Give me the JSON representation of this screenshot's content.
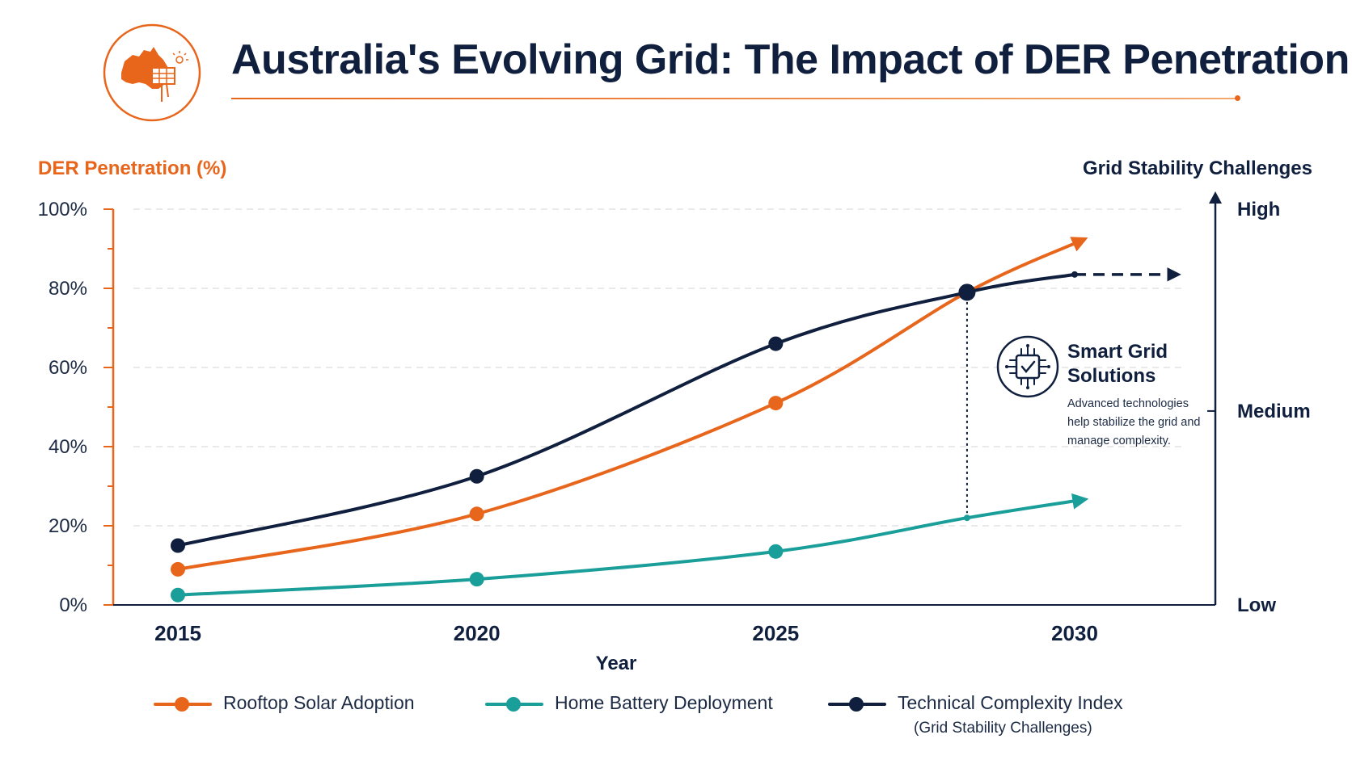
{
  "header": {
    "title": "Australia's Evolving Grid: The Impact of DER Penetration",
    "logo_icon": "australia-solar-panel-icon"
  },
  "colors": {
    "orange": "#e8661c",
    "teal": "#1a9e9a",
    "navy": "#0f1f3d",
    "grid": "#dcdcdc"
  },
  "chart_data": {
    "type": "line",
    "title": "Australia's Evolving Grid: The Impact of DER Penetration",
    "xlabel": "Year",
    "ylabel": "DER Penetration (%)",
    "y2label": "Grid Stability Challenges",
    "x_ticks": [
      "2015",
      "2020",
      "2025",
      "2030"
    ],
    "y_ticks": [
      "0%",
      "20%",
      "40%",
      "60%",
      "80%",
      "100%"
    ],
    "y2_ticks": [
      "Low",
      "Medium",
      "High"
    ],
    "xlim": [
      2014,
      2032.3
    ],
    "ylim": [
      0,
      100
    ],
    "grid": true,
    "legend_position": "bottom",
    "series": [
      {
        "name": "Rooftop Solar Adoption",
        "color": "#e8661c",
        "x": [
          2015,
          2020,
          2025,
          2028.2,
          2030.1
        ],
        "y": [
          9,
          23,
          51,
          79,
          92
        ],
        "markers": [
          true,
          true,
          true,
          false,
          false
        ],
        "arrow_end": true
      },
      {
        "name": "Home Battery Deployment",
        "color": "#1a9e9a",
        "x": [
          2015,
          2020,
          2025,
          2028.2,
          2030.1
        ],
        "y": [
          2.5,
          6.5,
          13.5,
          22,
          26.5
        ],
        "markers": [
          true,
          true,
          true,
          false,
          false
        ],
        "arrow_end": true
      },
      {
        "name": "Technical Complexity Index",
        "subtitle": "(Grid Stability Challenges)",
        "color": "#0f1f3d",
        "x": [
          2015,
          2020,
          2025,
          2028.2,
          2030
        ],
        "y": [
          15,
          32.5,
          66,
          79,
          83.5
        ],
        "markers": [
          true,
          true,
          true,
          true,
          false
        ],
        "projection": {
          "x": [
            2030,
            2031.8
          ],
          "y": [
            83.5,
            83.5
          ],
          "dashed": true
        }
      }
    ],
    "annotations": [
      {
        "type": "callout",
        "x": 2028.2,
        "title": "Smart Grid Solutions",
        "text": "Advanced technologies help stabilize the grid and manage complexity.",
        "icon": "microchip-check-icon"
      }
    ]
  },
  "legend": {
    "items": [
      {
        "label": "Rooftop Solar Adoption",
        "color": "#e8661c"
      },
      {
        "label": "Home Battery Deployment",
        "color": "#1a9e9a"
      },
      {
        "label": "Technical Complexity Index",
        "sub": "(Grid Stability Challenges)",
        "color": "#0f1f3d"
      }
    ]
  }
}
